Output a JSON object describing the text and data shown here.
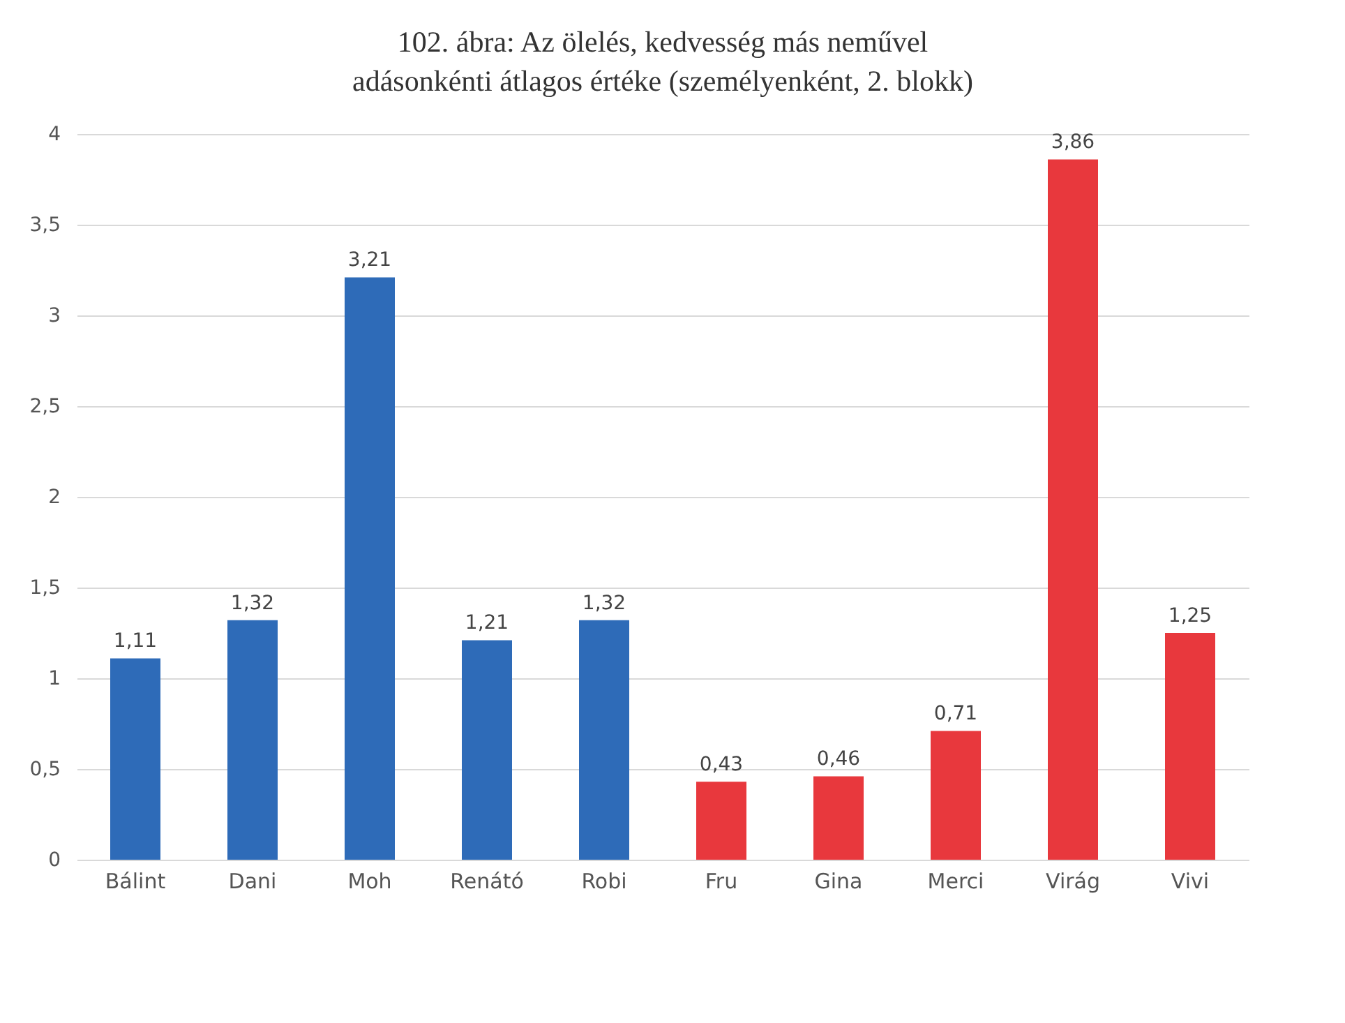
{
  "chart_data": {
    "type": "bar",
    "title": "102. ábra: Az ölelés, kedvesség más neművel\nadásonkénti átlagos értéke (személyenként, 2. blokk)",
    "categories": [
      "Bálint",
      "Dani",
      "Moh",
      "Renátó",
      "Robi",
      "Fru",
      "Gina",
      "Merci",
      "Virág",
      "Vivi"
    ],
    "values": [
      1.11,
      1.32,
      3.21,
      1.21,
      1.32,
      0.43,
      0.46,
      0.71,
      3.86,
      1.25
    ],
    "colors": [
      "#2e6bb8",
      "#2e6bb8",
      "#2e6bb8",
      "#2e6bb8",
      "#2e6bb8",
      "#e8383d",
      "#e8383d",
      "#e8383d",
      "#e8383d",
      "#e8383d"
    ],
    "value_labels": [
      "1,11",
      "1,32",
      "3,21",
      "1,21",
      "1,32",
      "0,43",
      "0,46",
      "0,71",
      "3,86",
      "1,25"
    ],
    "ylim": [
      0,
      4
    ],
    "yticks": [
      0,
      {
        "value": 0.5,
        "label": "0,5"
      },
      1,
      {
        "value": 1.5,
        "label": "1,5"
      },
      2,
      {
        "value": 2.5,
        "label": "2,5"
      },
      3,
      {
        "value": 3.5,
        "label": "3,5"
      },
      4
    ],
    "grid": "y"
  }
}
